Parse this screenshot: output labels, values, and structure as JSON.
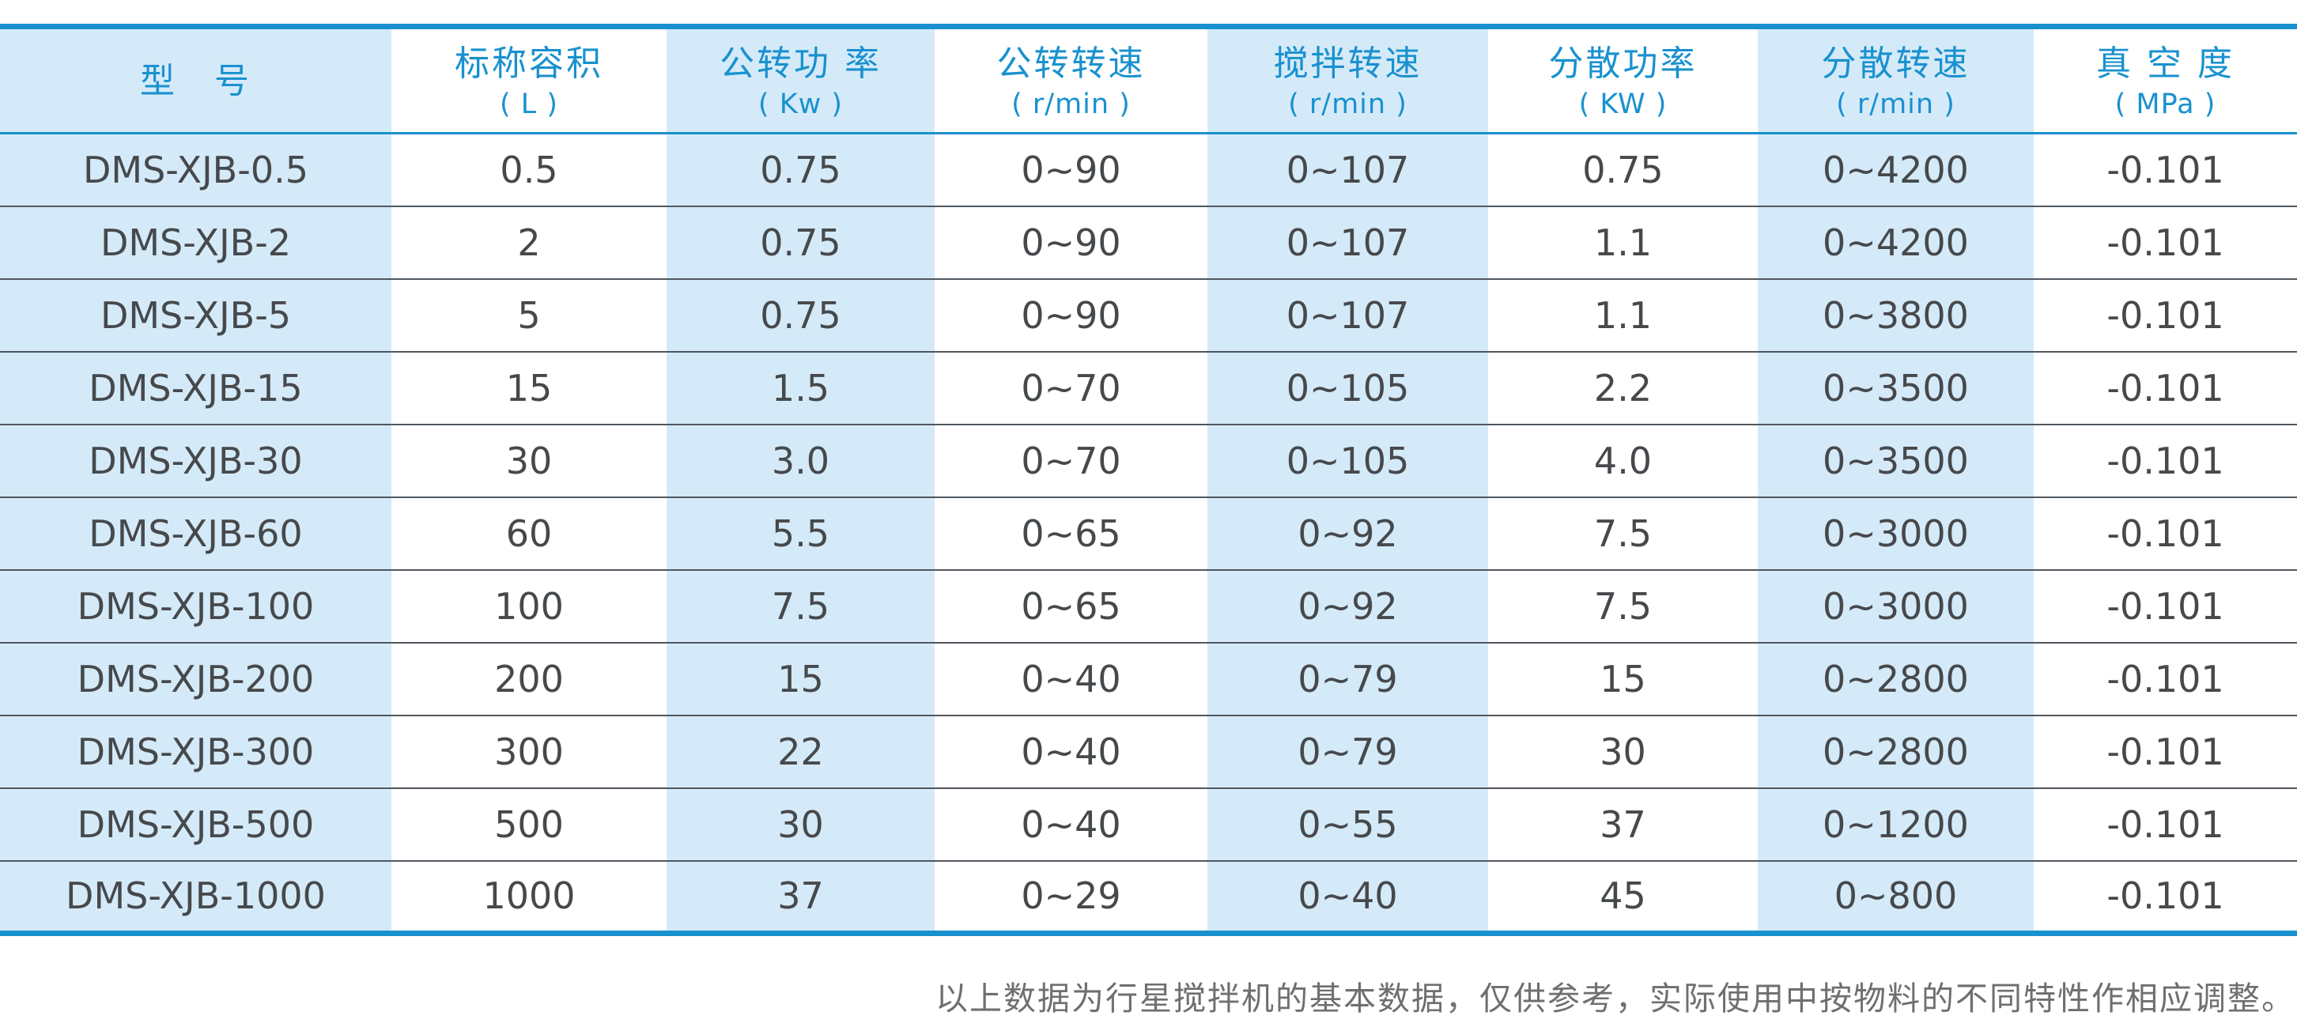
{
  "table": {
    "columns": [
      {
        "id": "model",
        "title": "型　号",
        "unit": ""
      },
      {
        "id": "nominal-capacity",
        "title": "标称容积",
        "unit": "( L )"
      },
      {
        "id": "revolution-power",
        "title": "公转功 率",
        "unit": "( Kw )"
      },
      {
        "id": "revolution-speed",
        "title": "公转转速",
        "unit": "( r/min )"
      },
      {
        "id": "stirring-speed",
        "title": "搅拌转速",
        "unit": "( r/min )"
      },
      {
        "id": "dispersing-power",
        "title": "分散功率",
        "unit": "( KW )"
      },
      {
        "id": "dispersing-speed",
        "title": "分散转速",
        "unit": "( r/min )"
      },
      {
        "id": "vacuum-degree",
        "title": "真 空 度",
        "unit": "( MPa )"
      }
    ],
    "rows": [
      [
        "DMS-XJB-0.5",
        "0.5",
        "0.75",
        "0~90",
        "0~107",
        "0.75",
        "0~4200",
        "-0.101"
      ],
      [
        "DMS-XJB-2",
        "2",
        "0.75",
        "0~90",
        "0~107",
        "1.1",
        "0~4200",
        "-0.101"
      ],
      [
        "DMS-XJB-5",
        "5",
        "0.75",
        "0~90",
        "0~107",
        "1.1",
        "0~3800",
        "-0.101"
      ],
      [
        "DMS-XJB-15",
        "15",
        "1.5",
        "0~70",
        "0~105",
        "2.2",
        "0~3500",
        "-0.101"
      ],
      [
        "DMS-XJB-30",
        "30",
        "3.0",
        "0~70",
        "0~105",
        "4.0",
        "0~3500",
        "-0.101"
      ],
      [
        "DMS-XJB-60",
        "60",
        "5.5",
        "0~65",
        "0~92",
        "7.5",
        "0~3000",
        "-0.101"
      ],
      [
        "DMS-XJB-100",
        "100",
        "7.5",
        "0~65",
        "0~92",
        "7.5",
        "0~3000",
        "-0.101"
      ],
      [
        "DMS-XJB-200",
        "200",
        "15",
        "0~40",
        "0~79",
        "15",
        "0~2800",
        "-0.101"
      ],
      [
        "DMS-XJB-300",
        "300",
        "22",
        "0~40",
        "0~79",
        "30",
        "0~2800",
        "-0.101"
      ],
      [
        "DMS-XJB-500",
        "500",
        "30",
        "0~40",
        "0~55",
        "37",
        "0~1200",
        "-0.101"
      ],
      [
        "DMS-XJB-1000",
        "1000",
        "37",
        "0~29",
        "0~40",
        "45",
        "0~800",
        "-0.101"
      ]
    ]
  },
  "footnote": "以上数据为行星搅拌机的基本数据，仅供参考，实际使用中按物料的不同特性作相应调整。",
  "colors": {
    "accent_blue": "#1991cf",
    "stripe_light_blue": "#d5eaf8",
    "row_separator": "#4f575e",
    "body_text": "#46494c",
    "footnote_text": "#6f6f6f"
  },
  "chart_data": {
    "type": "table",
    "title": "",
    "categories": [
      "型号",
      "标称容积 (L)",
      "公转功率 (Kw)",
      "公转转速 (r/min)",
      "搅拌转速 (r/min)",
      "分散功率 (KW)",
      "分散转速 (r/min)",
      "真空度 (MPa)"
    ],
    "values": [
      [
        "DMS-XJB-0.5",
        "0.5",
        "0.75",
        "0~90",
        "0~107",
        "0.75",
        "0~4200",
        "-0.101"
      ],
      [
        "DMS-XJB-2",
        "2",
        "0.75",
        "0~90",
        "0~107",
        "1.1",
        "0~4200",
        "-0.101"
      ],
      [
        "DMS-XJB-5",
        "5",
        "0.75",
        "0~90",
        "0~107",
        "1.1",
        "0~3800",
        "-0.101"
      ],
      [
        "DMS-XJB-15",
        "15",
        "1.5",
        "0~70",
        "0~105",
        "2.2",
        "0~3500",
        "-0.101"
      ],
      [
        "DMS-XJB-30",
        "30",
        "3.0",
        "0~70",
        "0~105",
        "4.0",
        "0~3500",
        "-0.101"
      ],
      [
        "DMS-XJB-60",
        "60",
        "5.5",
        "0~65",
        "0~92",
        "7.5",
        "0~3000",
        "-0.101"
      ],
      [
        "DMS-XJB-100",
        "100",
        "7.5",
        "0~65",
        "0~92",
        "7.5",
        "0~3000",
        "-0.101"
      ],
      [
        "DMS-XJB-200",
        "200",
        "15",
        "0~40",
        "0~79",
        "15",
        "0~2800",
        "-0.101"
      ],
      [
        "DMS-XJB-300",
        "300",
        "22",
        "0~40",
        "0~79",
        "30",
        "0~2800",
        "-0.101"
      ],
      [
        "DMS-XJB-500",
        "500",
        "30",
        "0~40",
        "0~55",
        "37",
        "0~1200",
        "-0.101"
      ],
      [
        "DMS-XJB-1000",
        "1000",
        "37",
        "0~29",
        "0~40",
        "45",
        "0~800",
        "-0.101"
      ]
    ]
  }
}
